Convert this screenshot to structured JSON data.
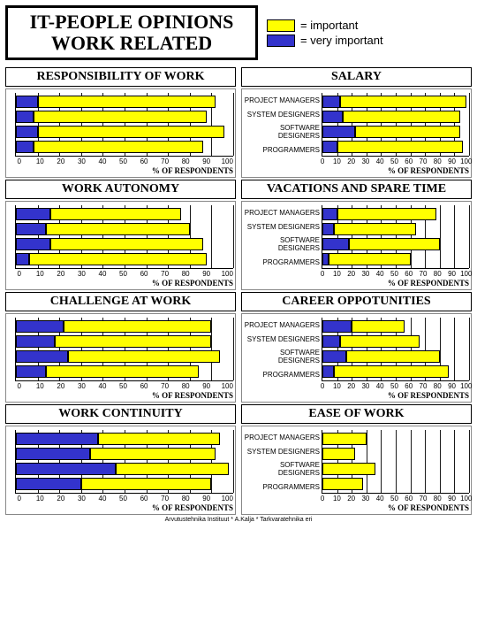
{
  "title_line1": "IT-PEOPLE OPINIONS",
  "title_line2": "WORK RELATED",
  "legend": {
    "important": {
      "label": "= important",
      "color": "#ffff00"
    },
    "very_important": {
      "label": "= very important",
      "color": "#3333cc"
    }
  },
  "x_axis_label": "% OF RESPONDENTS",
  "categories_full": [
    "PROJECT MANAGERS",
    "SYSTEM DESIGNERS",
    "SOFTWARE DESIGNERS",
    "PROGRAMMERS"
  ],
  "xticks": [
    0,
    10,
    20,
    30,
    40,
    50,
    60,
    70,
    80,
    90,
    100
  ],
  "colors": {
    "very_important": "#3333cc",
    "important": "#ffff00",
    "grid": "#000000",
    "border": "#000000",
    "background": "#ffffff"
  },
  "panels": [
    {
      "title": "RESPONSIBILITY OF WORK",
      "show_categories": false,
      "data": [
        {
          "very_important": 10,
          "important": 82
        },
        {
          "very_important": 8,
          "important": 80
        },
        {
          "very_important": 10,
          "important": 86
        },
        {
          "very_important": 8,
          "important": 78
        }
      ]
    },
    {
      "title": "SALARY",
      "show_categories": true,
      "data": [
        {
          "very_important": 12,
          "important": 86
        },
        {
          "very_important": 14,
          "important": 80
        },
        {
          "very_important": 22,
          "important": 72
        },
        {
          "very_important": 10,
          "important": 86
        }
      ]
    },
    {
      "title": "WORK AUTONOMY",
      "show_categories": false,
      "data": [
        {
          "very_important": 16,
          "important": 60
        },
        {
          "very_important": 14,
          "important": 66
        },
        {
          "very_important": 16,
          "important": 70
        },
        {
          "very_important": 6,
          "important": 82
        }
      ]
    },
    {
      "title": "VACATIONS AND SPARE TIME",
      "show_categories": true,
      "data": [
        {
          "very_important": 10,
          "important": 68
        },
        {
          "very_important": 8,
          "important": 56
        },
        {
          "very_important": 18,
          "important": 62
        },
        {
          "very_important": 4,
          "important": 56
        }
      ]
    },
    {
      "title": "CHALLENGE AT WORK",
      "show_categories": false,
      "data": [
        {
          "very_important": 22,
          "important": 68
        },
        {
          "very_important": 18,
          "important": 72
        },
        {
          "very_important": 24,
          "important": 70
        },
        {
          "very_important": 14,
          "important": 70
        }
      ]
    },
    {
      "title": "CAREER OPPOTUNITIES",
      "show_categories": true,
      "data": [
        {
          "very_important": 20,
          "important": 36
        },
        {
          "very_important": 12,
          "important": 54
        },
        {
          "very_important": 16,
          "important": 64
        },
        {
          "very_important": 8,
          "important": 78
        }
      ]
    },
    {
      "title": "WORK CONTINUITY",
      "show_categories": false,
      "data": [
        {
          "very_important": 38,
          "important": 56
        },
        {
          "very_important": 34,
          "important": 58
        },
        {
          "very_important": 46,
          "important": 52
        },
        {
          "very_important": 30,
          "important": 60
        }
      ]
    },
    {
      "title": "EASE OF WORK",
      "show_categories": true,
      "data": [
        {
          "very_important": 0,
          "important": 30
        },
        {
          "very_important": 0,
          "important": 22
        },
        {
          "very_important": 0,
          "important": 36
        },
        {
          "very_important": 0,
          "important": 28
        }
      ]
    }
  ],
  "footer": "Arvutustehnika Instituut * A.Kalja * Tarkvaratehnika eri"
}
